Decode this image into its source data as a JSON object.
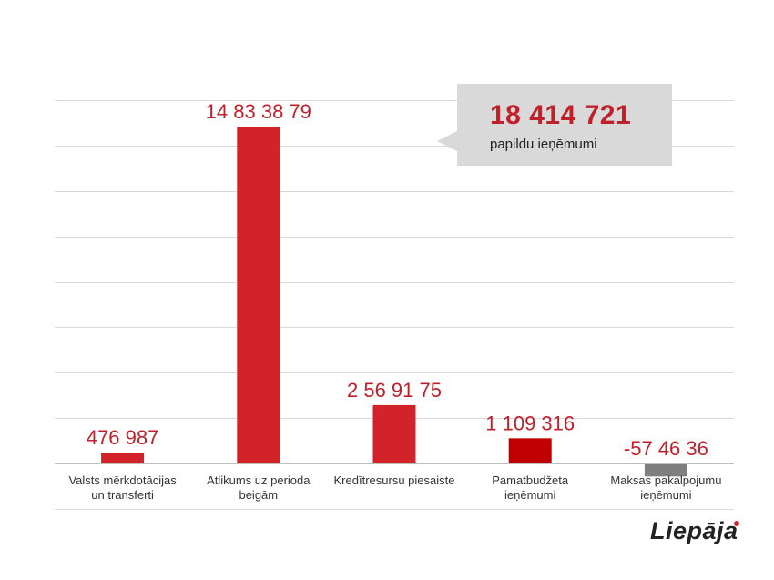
{
  "chart_data": {
    "type": "bar",
    "title": "",
    "xlabel": "",
    "ylabel": "",
    "ylim": [
      -2000000,
      18000000
    ],
    "grid": true,
    "legend": "none",
    "categories": [
      [
        "Valsts mērķdotācijas",
        "un transferti"
      ],
      [
        "Atlikums uz perioda",
        "beigām"
      ],
      [
        "Kredītresursu piesaiste"
      ],
      [
        "Pamatbudžeta",
        "ieņēmumi"
      ],
      [
        "Maksas pakalpojumu",
        "ieņēmumi"
      ]
    ],
    "values": [
      476987,
      14833879,
      2569175,
      1109316,
      -574636
    ],
    "data_labels": [
      "476 987",
      "14 83 38 79",
      "2 56 91 75",
      "1 109 316",
      "-57 46 36"
    ],
    "bar_colors": [
      "#d2232a",
      "#d2232a",
      "#d2232a",
      "#c00000",
      "#7f7f7f"
    ],
    "label_color": "#c0202a",
    "grid_color": "#d9d9d9"
  },
  "callout": {
    "value": "18 414 721",
    "label": "papildu ieņēmumi"
  },
  "logo": {
    "text": "Liepāja"
  }
}
